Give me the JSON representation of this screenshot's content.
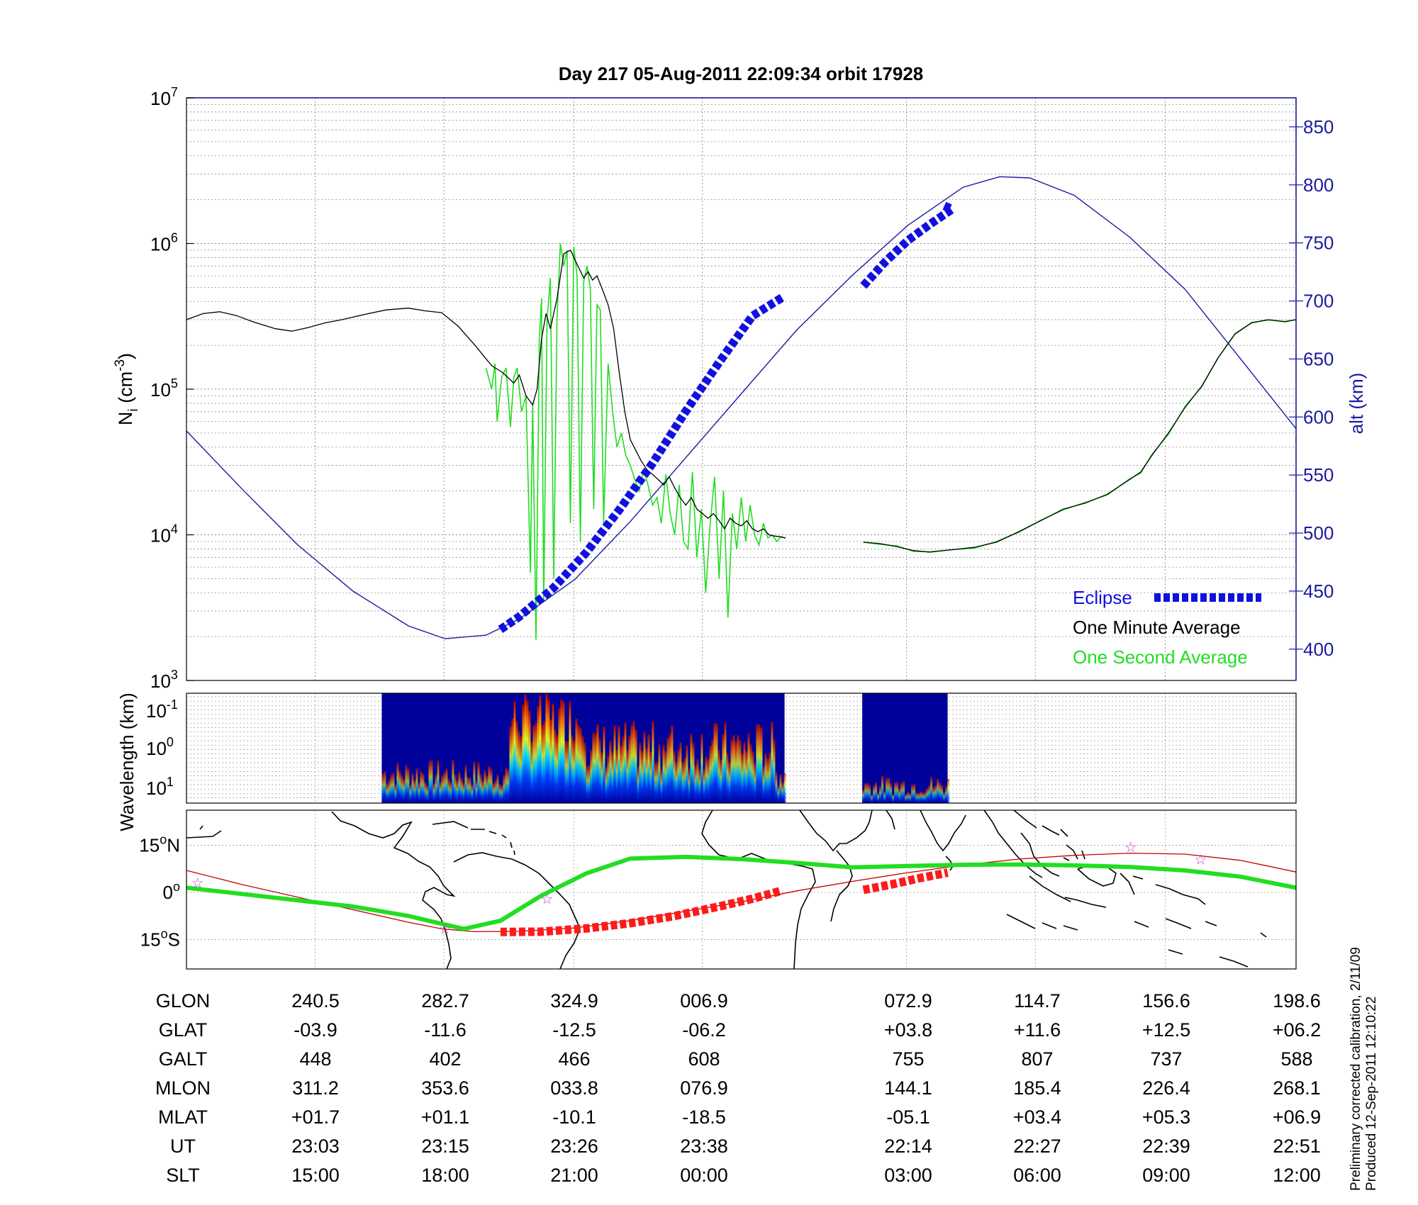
{
  "header": {
    "title": "Day 217  05-Aug-2011 22:09:34   orbit 17928"
  },
  "side_notes": {
    "calibration": "Preliminary corrected calibration, 2/11/09",
    "produced": "Produced 12-Sep-2011 12:10:22"
  },
  "colors": {
    "eclipse": "#1010e0",
    "one_minute": "#000000",
    "one_second": "#22dd22",
    "altitude": "#1a1aa0",
    "footprint": "#ff1a1a",
    "track": "#22dd22",
    "orbit_line": "#c00000",
    "star": "#d040d0",
    "coast": "#000000"
  },
  "chart_data": [
    {
      "id": "density",
      "type": "line",
      "title": "Day 217  05-Aug-2011 22:09:34   orbit 17928",
      "ylabel_left": "N_i (cm^-3)",
      "ylabel_right": "alt (km)",
      "y_left_scale": "log",
      "ylim_left": [
        1000,
        10000000
      ],
      "y_left_ticks": [
        {
          "base": "10",
          "exp": "3"
        },
        {
          "base": "10",
          "exp": "4"
        },
        {
          "base": "10",
          "exp": "5"
        },
        {
          "base": "10",
          "exp": "6"
        },
        {
          "base": "10",
          "exp": "7"
        }
      ],
      "ylim_right": [
        373,
        875
      ],
      "y_right_ticks": [
        "400",
        "450",
        "500",
        "550",
        "600",
        "650",
        "700",
        "750",
        "800",
        "850"
      ],
      "xlim": [
        0,
        1
      ],
      "grid": true,
      "legend": {
        "position": "bottom-right",
        "entries": [
          {
            "label": "Eclipse",
            "style": "thick-dashed-blue"
          },
          {
            "label": "One Minute Average",
            "style": "black-line"
          },
          {
            "label": "One Second Average",
            "style": "green-line"
          }
        ]
      },
      "series": [
        {
          "name": "One Minute Average",
          "axis": "left",
          "segments": [
            {
              "x": [
                0.0,
                0.015,
                0.03,
                0.045,
                0.06,
                0.08,
                0.095,
                0.11,
                0.125,
                0.14,
                0.16,
                0.18,
                0.2,
                0.215,
                0.23,
                0.245,
                0.26,
                0.275,
                0.285,
                0.295,
                0.3,
                0.306,
                0.312,
                0.316,
                0.32,
                0.324,
                0.328,
                0.334,
                0.34,
                0.346,
                0.352,
                0.358,
                0.362,
                0.366,
                0.37,
                0.375,
                0.38,
                0.385,
                0.39,
                0.395,
                0.4,
                0.405,
                0.41,
                0.415,
                0.42,
                0.425,
                0.43,
                0.435,
                0.44,
                0.445,
                0.45,
                0.455,
                0.46,
                0.465,
                0.47,
                0.475,
                0.48,
                0.485,
                0.49,
                0.495,
                0.5,
                0.505,
                0.51,
                0.515,
                0.52,
                0.525,
                0.53,
                0.535,
                0.54
              ],
              "y": [
                300000,
                330000,
                340000,
                320000,
                290000,
                260000,
                250000,
                265000,
                285000,
                300000,
                325000,
                350000,
                360000,
                345000,
                335000,
                270000,
                200000,
                145000,
                130000,
                110000,
                125000,
                90000,
                78000,
                100000,
                220000,
                330000,
                260000,
                420000,
                850000,
                900000,
                720000,
                580000,
                640000,
                560000,
                600000,
                480000,
                380000,
                260000,
                130000,
                70000,
                45000,
                38000,
                32000,
                28000,
                26000,
                24000,
                22000,
                25000,
                21000,
                18000,
                16000,
                18000,
                15000,
                14000,
                13000,
                14000,
                12500,
                11000,
                13000,
                12000,
                11500,
                12500,
                11000,
                10500,
                11000,
                10000,
                9800,
                9700,
                9500
              ]
            },
            {
              "x": [
                0.61,
                0.625,
                0.64,
                0.655,
                0.67,
                0.69,
                0.71,
                0.73,
                0.75,
                0.77,
                0.79,
                0.81,
                0.83,
                0.85,
                0.86,
                0.87,
                0.885,
                0.9,
                0.915,
                0.93,
                0.945,
                0.96,
                0.975,
                0.99,
                1.0
              ],
              "y": [
                8900,
                8700,
                8300,
                7800,
                7600,
                7900,
                8200,
                8900,
                10500,
                12500,
                15000,
                16500,
                19000,
                24000,
                27000,
                35000,
                50000,
                75000,
                105000,
                165000,
                240000,
                285000,
                300000,
                290000,
                300000
              ]
            }
          ]
        },
        {
          "name": "One Second Average",
          "axis": "left",
          "segments": [
            {
              "x": [
                0.27,
                0.275,
                0.278,
                0.28,
                0.284,
                0.288,
                0.292,
                0.295,
                0.298,
                0.302,
                0.306,
                0.31,
                0.312,
                0.315,
                0.318,
                0.32,
                0.322,
                0.325,
                0.328,
                0.331,
                0.334,
                0.337,
                0.34,
                0.343,
                0.346,
                0.349,
                0.352,
                0.355,
                0.358,
                0.361,
                0.364,
                0.367,
                0.37,
                0.373,
                0.376,
                0.38,
                0.384,
                0.388,
                0.392,
                0.396,
                0.4,
                0.404,
                0.408,
                0.412,
                0.416,
                0.42,
                0.424,
                0.428,
                0.432,
                0.436,
                0.44,
                0.444,
                0.448,
                0.452,
                0.456,
                0.46,
                0.464,
                0.468,
                0.472,
                0.476,
                0.48,
                0.484,
                0.488,
                0.492,
                0.496,
                0.5,
                0.504,
                0.508,
                0.512,
                0.516,
                0.52,
                0.524,
                0.528,
                0.532,
                0.536,
                0.54
              ],
              "y": [
                140000,
                100000,
                150000,
                60000,
                120000,
                140000,
                55000,
                120000,
                140000,
                70000,
                90000,
                5500,
                80000,
                1900,
                220000,
                420000,
                3500,
                300000,
                580000,
                5000,
                320000,
                1000000,
                700000,
                900000,
                12000,
                950000,
                600000,
                9000,
                550000,
                700000,
                480000,
                15000,
                380000,
                350000,
                12000,
                150000,
                70000,
                40000,
                50000,
                35000,
                30000,
                24000,
                20000,
                28000,
                22000,
                16000,
                18000,
                12000,
                26000,
                14000,
                10000,
                22000,
                9000,
                8000,
                27000,
                7000,
                15000,
                4000,
                12000,
                25000,
                5000,
                20000,
                2700,
                14000,
                8000,
                18000,
                9000,
                16000,
                10000,
                8500,
                12000,
                9500,
                10000,
                9000,
                9700,
                9500
              ]
            },
            {
              "x": [
                0.61,
                0.625,
                0.64,
                0.655,
                0.67,
                0.69,
                0.71,
                0.73,
                0.75,
                0.77,
                0.79,
                0.81,
                0.83,
                0.85,
                0.86,
                0.87,
                0.885,
                0.9,
                0.915,
                0.93,
                0.945,
                0.96,
                0.975,
                0.99,
                1.0
              ],
              "y": [
                8900,
                8600,
                8400,
                7700,
                7650,
                7900,
                8100,
                9000,
                10400,
                12600,
                14800,
                16700,
                18800,
                24200,
                26500,
                35500,
                49000,
                76000,
                104000,
                166000,
                238000,
                287000,
                298000,
                292000,
                300000
              ]
            }
          ]
        },
        {
          "name": "Altitude",
          "axis": "right",
          "x": [
            0.0,
            0.05,
            0.1,
            0.15,
            0.2,
            0.233,
            0.27,
            0.3,
            0.35,
            0.4,
            0.45,
            0.5,
            0.55,
            0.6,
            0.65,
            0.7,
            0.733,
            0.76,
            0.8,
            0.85,
            0.9,
            0.95,
            1.0
          ],
          "y": [
            588,
            538,
            490,
            450,
            420,
            409,
            412,
            426,
            460,
            510,
            565,
            620,
            675,
            722,
            765,
            798,
            807,
            806,
            791,
            755,
            710,
            650,
            590
          ]
        },
        {
          "name": "Eclipse",
          "axis": "right",
          "segments": [
            {
              "x": [
                0.283,
                0.3,
                0.33,
                0.36,
                0.39,
                0.42,
                0.45,
                0.48,
                0.51,
                0.537
              ],
              "y": [
                417,
                428,
                452,
                483,
                520,
                560,
                605,
                647,
                687,
                703
              ]
            },
            {
              "x": [
                0.61,
                0.63,
                0.65,
                0.67,
                0.69,
                0.683
              ],
              "y": [
                713,
                734,
                752,
                766,
                779,
                782
              ]
            }
          ]
        }
      ]
    },
    {
      "id": "spectrogram",
      "type": "heatmap",
      "ylabel": "Wavelength (km)",
      "y_ticks": [
        {
          "base": "10",
          "exp": "-1"
        },
        {
          "base": "10",
          "exp": "0"
        },
        {
          "base": "10",
          "exp": "1"
        }
      ],
      "data_intervals": [
        [
          0.176,
          0.539
        ],
        [
          0.609,
          0.686
        ]
      ],
      "colormap": "jet"
    },
    {
      "id": "ground-track",
      "type": "map",
      "y_ticks": [
        "15°N",
        "0°",
        "15°S"
      ],
      "lat_range": [
        -25,
        25
      ],
      "series": [
        {
          "name": "Ground track",
          "x": [
            0.0,
            0.05,
            0.1,
            0.15,
            0.2,
            0.23,
            0.25,
            0.283,
            0.32,
            0.36,
            0.4,
            0.45,
            0.5,
            0.55,
            0.6,
            0.65,
            0.7,
            0.75,
            0.8,
            0.85,
            0.9,
            0.95,
            1.0
          ],
          "lat": [
            1.5,
            -0.5,
            -2.5,
            -4.5,
            -7.5,
            -10,
            -11.6,
            -9,
            -1,
            6,
            10.8,
            11.3,
            10.6,
            9.4,
            8,
            8.4,
            8.8,
            8.9,
            8.6,
            8.1,
            7,
            5,
            1.5
          ]
        },
        {
          "name": "Model orbit",
          "x": [
            0.0,
            0.05,
            0.1,
            0.15,
            0.2,
            0.23,
            0.26,
            0.3,
            0.35,
            0.4,
            0.45,
            0.5,
            0.55,
            0.6,
            0.65,
            0.7,
            0.75,
            0.8,
            0.85,
            0.9,
            0.95,
            1.0
          ],
          "lat": [
            7,
            2.5,
            -1.5,
            -5.5,
            -9.5,
            -11.6,
            -12.5,
            -12.4,
            -11.3,
            -9,
            -6,
            -3,
            0.5,
            3.5,
            6.3,
            8.7,
            10.6,
            11.8,
            12.5,
            12.2,
            10.2,
            6.5
          ]
        },
        {
          "name": "Eclipse footprint",
          "segments": [
            {
              "x": [
                0.283,
                0.32,
                0.36,
                0.4,
                0.44,
                0.48,
                0.51,
                0.537
              ],
              "lat": [
                -12.6,
                -12.5,
                -11.5,
                -9.8,
                -7.5,
                -4.5,
                -2,
                0.6
              ]
            },
            {
              "x": [
                0.61,
                0.635,
                0.66,
                0.686
              ],
              "lat": [
                0.8,
                2.5,
                4.5,
                6.3
              ]
            }
          ]
        },
        {
          "name": "Stars",
          "x": [
            0.01,
            0.233,
            0.325,
            0.851,
            0.914
          ],
          "lat": [
            3,
            -11.6,
            -2,
            14.5,
            10.5
          ]
        }
      ]
    }
  ],
  "table": {
    "row_labels": [
      "GLON",
      "GLAT",
      "GALT",
      "MLON",
      "MLAT",
      "UT",
      "SLT"
    ],
    "columns": [
      [
        "240.5",
        "-03.9",
        "448",
        "311.2",
        "+01.7",
        "23:03",
        "15:00"
      ],
      [
        "282.7",
        "-11.6",
        "402",
        "353.6",
        "+01.1",
        "23:15",
        "18:00"
      ],
      [
        "324.9",
        "-12.5",
        "466",
        "033.8",
        "-10.1",
        "23:26",
        "21:00"
      ],
      [
        "006.9",
        "-06.2",
        "608",
        "076.9",
        "-18.5",
        "23:38",
        "00:00"
      ],
      [
        "072.9",
        "+03.8",
        "755",
        "144.1",
        "-05.1",
        "22:14",
        "03:00"
      ],
      [
        "114.7",
        "+11.6",
        "807",
        "185.4",
        "+03.4",
        "22:27",
        "06:00"
      ],
      [
        "156.6",
        "+12.5",
        "737",
        "226.4",
        "+05.3",
        "22:39",
        "09:00"
      ],
      [
        "198.6",
        "+06.2",
        "588",
        "268.1",
        "+06.9",
        "22:51",
        "12:00"
      ]
    ]
  }
}
